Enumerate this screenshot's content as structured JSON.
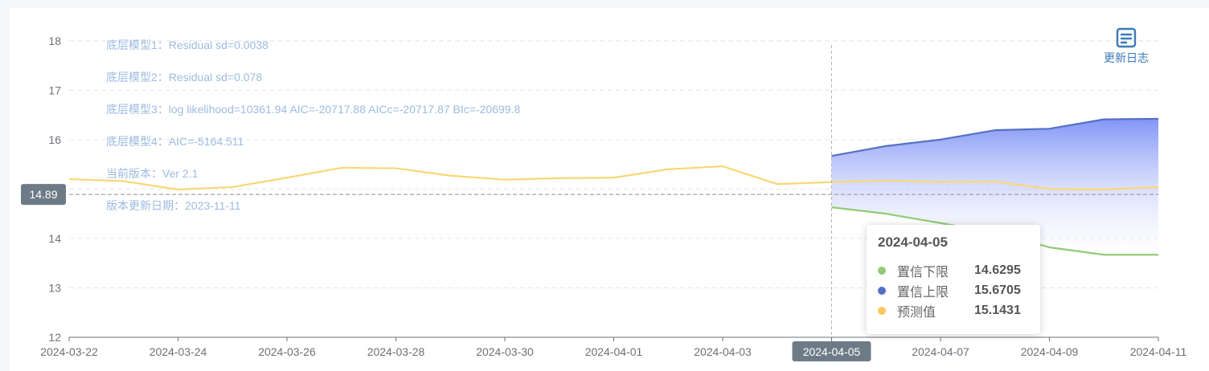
{
  "update_log": {
    "label": "更新日志",
    "icon": "document-list-icon"
  },
  "annotations": [
    "底层模型1：Residual sd=0.0038",
    "底层模型2：Residual sd=0.078",
    "底层模型3：log likelihood=10361.94 AIC=-20717.88 AICc=-20717.87 BIc=-20699.8",
    "底层模型4：AIC=-5164.511",
    "当前版本：Ver 2.1",
    "版本更新日期：2023-11-11"
  ],
  "reference_line": {
    "value": 14.89,
    "label": "14.89"
  },
  "axis_pointer": {
    "x_label": "2024-04-05"
  },
  "tooltip": {
    "title": "2024-04-05",
    "rows": [
      {
        "name": "置信下限",
        "value": "14.6295",
        "color": "#91cc75"
      },
      {
        "name": "置信上限",
        "value": "15.6705",
        "color": "#5470c6"
      },
      {
        "name": "预测值",
        "value": "15.1431",
        "color": "#fac858"
      }
    ]
  },
  "colors": {
    "forecast": "#fad775",
    "upper": "#5470c6",
    "lower": "#91cc75",
    "band_top": "#7b8ff5",
    "grid": "#e3e6ee",
    "axis": "#6e7079",
    "pointer_label_bg": "#6e7b87"
  },
  "chart_data": {
    "type": "line",
    "x": [
      "2024-03-22",
      "2024-03-23",
      "2024-03-24",
      "2024-03-25",
      "2024-03-26",
      "2024-03-27",
      "2024-03-28",
      "2024-03-29",
      "2024-03-30",
      "2024-03-31",
      "2024-04-01",
      "2024-04-02",
      "2024-04-03",
      "2024-04-04",
      "2024-04-05",
      "2024-04-06",
      "2024-04-07",
      "2024-04-08",
      "2024-04-09",
      "2024-04-10",
      "2024-04-11"
    ],
    "x_tick_labels": [
      "2024-03-22",
      "2024-03-24",
      "2024-03-26",
      "2024-03-28",
      "2024-03-30",
      "2024-04-01",
      "2024-04-03",
      "2024-04-05",
      "2024-04-07",
      "2024-04-09",
      "2024-04-11"
    ],
    "y_ticks": [
      12,
      13,
      14,
      15,
      16,
      17,
      18
    ],
    "ylim": [
      12,
      18.5
    ],
    "grid": true,
    "series": [
      {
        "name": "预测值",
        "values": [
          15.2,
          15.16,
          14.99,
          15.04,
          15.23,
          15.43,
          15.42,
          15.27,
          15.19,
          15.22,
          15.23,
          15.4,
          15.46,
          15.1,
          15.14,
          15.17,
          15.14,
          15.15,
          15.0,
          14.99,
          15.04
        ]
      },
      {
        "name": "置信上限",
        "values": [
          null,
          null,
          null,
          null,
          null,
          null,
          null,
          null,
          null,
          null,
          null,
          null,
          null,
          null,
          15.67,
          15.87,
          16.0,
          16.19,
          16.22,
          16.41,
          16.42
        ]
      },
      {
        "name": "置信下限",
        "values": [
          null,
          null,
          null,
          null,
          null,
          null,
          null,
          null,
          null,
          null,
          null,
          null,
          null,
          null,
          14.63,
          14.5,
          14.31,
          14.13,
          13.82,
          13.67,
          13.67
        ]
      }
    ]
  }
}
